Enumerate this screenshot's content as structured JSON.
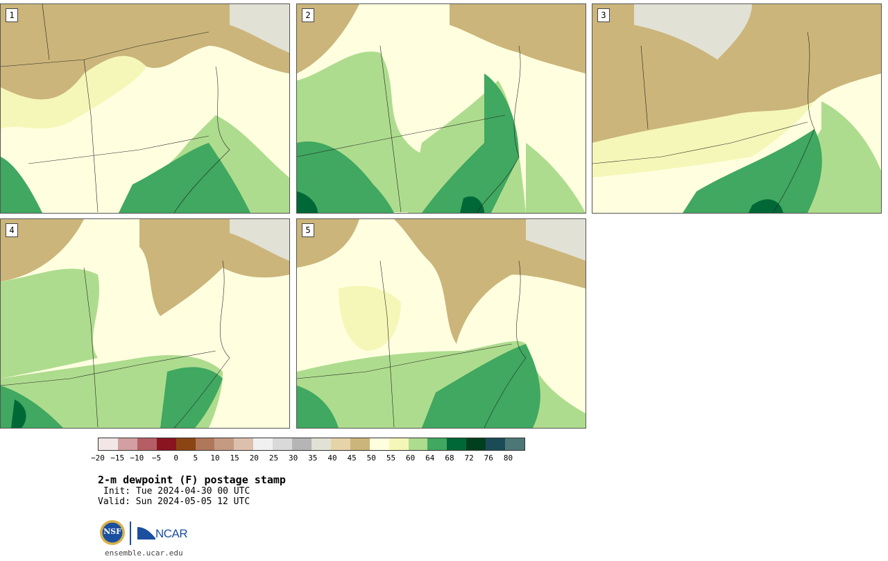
{
  "panels": [
    {
      "label": "1"
    },
    {
      "label": "2"
    },
    {
      "label": "3"
    },
    {
      "label": "4"
    },
    {
      "label": "5"
    }
  ],
  "colorbar": {
    "colors": [
      "#f2e6e6",
      "#d39fa2",
      "#b55e65",
      "#8a1520",
      "#8b4513",
      "#b0785a",
      "#c49a82",
      "#dcc0ae",
      "#f0f0f0",
      "#d9d9d9",
      "#b5b5b5",
      "#e1e1d6",
      "#e6d3a8",
      "#cbb57a",
      "#ffffe0",
      "#f5f7b8",
      "#aedc8e",
      "#40a860",
      "#006837",
      "#00401f",
      "#1b4b56",
      "#4d7777"
    ],
    "tick_labels": [
      "−20",
      "−15",
      "−10",
      "−5",
      "0",
      "5",
      "10",
      "15",
      "20",
      "25",
      "30",
      "35",
      "40",
      "45",
      "50",
      "55",
      "60",
      "64",
      "68",
      "72",
      "76",
      "80"
    ]
  },
  "title": "2-m dewpoint (F) postage stamp",
  "init": "Init: Tue 2024-04-30 00 UTC",
  "valid": "Valid: Sun 2024-05-05 12 UTC",
  "logos": {
    "nsf": "NSF",
    "ncar": "NCAR"
  },
  "website": "ensemble.ucar.edu"
}
